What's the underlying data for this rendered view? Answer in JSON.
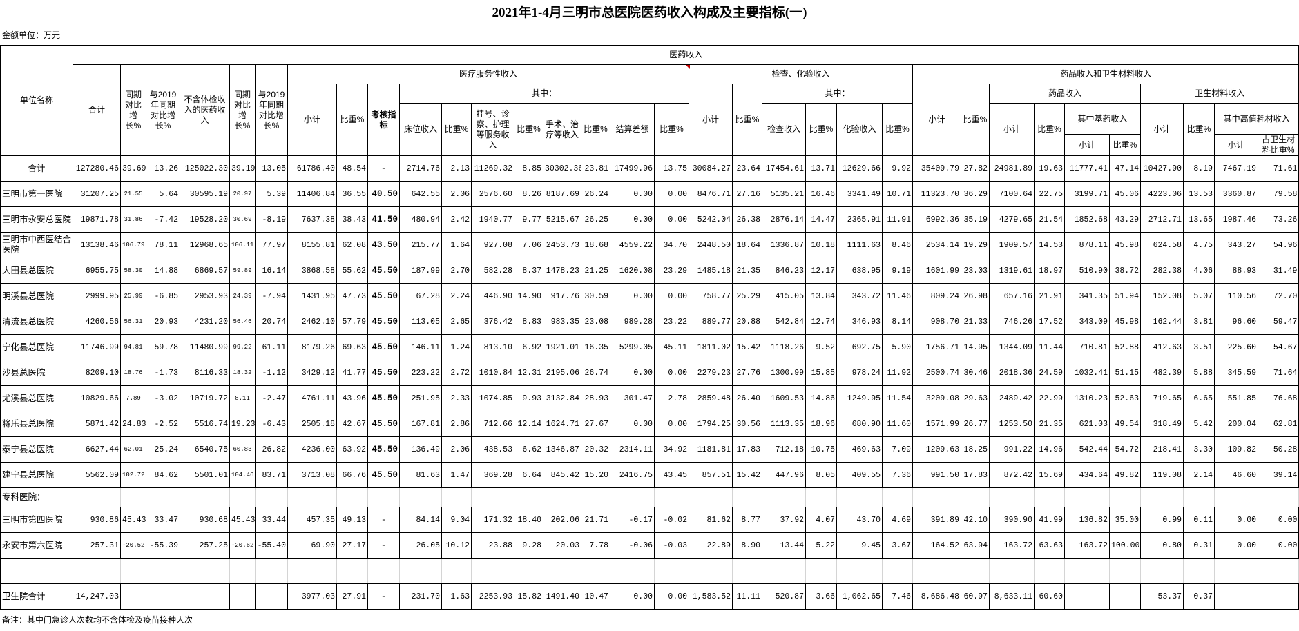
{
  "title": "2021年1-4月三明市总医院医药收入构成及主要指标(一)",
  "unit_label": "金额单位：万元",
  "note": "备注：其中门急诊人次数均不含体检及疫苗接种人次",
  "colors": {
    "border": "#000000",
    "gridline": "#d4d4d4",
    "comment_marker": "#c00000"
  },
  "table": {
    "headers": [
      "单位名称",
      "医药收入",
      "合计",
      "同期对比增长%",
      "与2019年同期对比增长%",
      "不含体检收入的医药收入",
      "同期对比增长%",
      "与2019年同期对比增长%",
      "医疗服务性收入",
      "检查、化验收入",
      "药品收入和卫生材料收入",
      "小计",
      "比重%",
      "考核指标",
      "其中：",
      "小计",
      "比重%",
      "其中：",
      "小计",
      "比重%",
      "药品收入",
      "卫生材料收入",
      "床位收入",
      "比重%",
      "挂号、诊察、护理等服务收入",
      "比重%",
      "手术、治疗等收入",
      "比重%",
      "结算差额",
      "比重%",
      "检查收入",
      "比重%",
      "化验收入",
      "比重%",
      "小计",
      "比重%",
      "其中基药收入",
      "小计",
      "比重%",
      "其中高值耗材收入",
      "小计",
      "比重%",
      "小计",
      "占卫生材料比重%"
    ],
    "rows": [
      {
        "name": "合计",
        "type": "total",
        "values": [
          "127280.46",
          "39.69",
          "13.26",
          "125022.30",
          "39.19",
          "13.05",
          "61786.40",
          "48.54",
          "-",
          "2714.76",
          "2.13",
          "11269.32",
          "8.85",
          "30302.36",
          "23.81",
          "17499.96",
          "13.75",
          "30084.27",
          "23.64",
          "17454.61",
          "13.71",
          "12629.66",
          "9.92",
          "35409.79",
          "27.82",
          "24981.89",
          "19.63",
          "11777.41",
          "47.14",
          "10427.90",
          "8.19",
          "7467.19",
          "71.61"
        ]
      },
      {
        "name": "三明市第一医院",
        "values": [
          "31207.25",
          "21.55",
          "5.64",
          "30595.19",
          "20.97",
          "5.39",
          "11406.84",
          "36.55",
          "40.50",
          "642.55",
          "2.06",
          "2576.60",
          "8.26",
          "8187.69",
          "26.24",
          "0.00",
          "0.00",
          "8476.71",
          "27.16",
          "5135.21",
          "16.46",
          "3341.49",
          "10.71",
          "11323.70",
          "36.29",
          "7100.64",
          "22.75",
          "3199.71",
          "45.06",
          "4223.06",
          "13.53",
          "3360.87",
          "79.58"
        ]
      },
      {
        "name": "三明市永安总医院",
        "values": [
          "19871.78",
          "31.86",
          "-7.42",
          "19528.20",
          "30.69",
          "-8.19",
          "7637.38",
          "38.43",
          "41.50",
          "480.94",
          "2.42",
          "1940.77",
          "9.77",
          "5215.67",
          "26.25",
          "0.00",
          "0.00",
          "5242.04",
          "26.38",
          "2876.14",
          "14.47",
          "2365.91",
          "11.91",
          "6992.36",
          "35.19",
          "4279.65",
          "21.54",
          "1852.68",
          "43.29",
          "2712.71",
          "13.65",
          "1987.46",
          "73.26"
        ]
      },
      {
        "name": "三明市中西医结合医院",
        "values": [
          "13138.46",
          "106.79",
          "78.11",
          "12968.65",
          "106.11",
          "77.97",
          "8155.81",
          "62.08",
          "43.50",
          "215.77",
          "1.64",
          "927.08",
          "7.06",
          "2453.73",
          "18.68",
          "4559.22",
          "34.70",
          "2448.50",
          "18.64",
          "1336.87",
          "10.18",
          "1111.63",
          "8.46",
          "2534.14",
          "19.29",
          "1909.57",
          "14.53",
          "878.11",
          "45.98",
          "624.58",
          "4.75",
          "343.27",
          "54.96"
        ]
      },
      {
        "name": "大田县总医院",
        "values": [
          "6955.75",
          "58.30",
          "14.88",
          "6869.57",
          "59.89",
          "16.14",
          "3868.58",
          "55.62",
          "45.50",
          "187.99",
          "2.70",
          "582.28",
          "8.37",
          "1478.23",
          "21.25",
          "1620.08",
          "23.29",
          "1485.18",
          "21.35",
          "846.23",
          "12.17",
          "638.95",
          "9.19",
          "1601.99",
          "23.03",
          "1319.61",
          "18.97",
          "510.90",
          "38.72",
          "282.38",
          "4.06",
          "88.93",
          "31.49"
        ]
      },
      {
        "name": "明溪县总医院",
        "values": [
          "2999.95",
          "25.99",
          "-6.85",
          "2953.93",
          "24.39",
          "-7.94",
          "1431.95",
          "47.73",
          "45.50",
          "67.28",
          "2.24",
          "446.90",
          "14.90",
          "917.76",
          "30.59",
          "0.00",
          "0.00",
          "758.77",
          "25.29",
          "415.05",
          "13.84",
          "343.72",
          "11.46",
          "809.24",
          "26.98",
          "657.16",
          "21.91",
          "341.35",
          "51.94",
          "152.08",
          "5.07",
          "110.56",
          "72.70"
        ]
      },
      {
        "name": "清流县总医院",
        "values": [
          "4260.56",
          "56.31",
          "20.93",
          "4231.20",
          "56.46",
          "20.74",
          "2462.10",
          "57.79",
          "45.50",
          "113.05",
          "2.65",
          "376.42",
          "8.83",
          "983.35",
          "23.08",
          "989.28",
          "23.22",
          "889.77",
          "20.88",
          "542.84",
          "12.74",
          "346.93",
          "8.14",
          "908.70",
          "21.33",
          "746.26",
          "17.52",
          "343.09",
          "45.98",
          "162.44",
          "3.81",
          "96.60",
          "59.47"
        ]
      },
      {
        "name": "宁化县总医院",
        "values": [
          "11746.99",
          "94.81",
          "59.78",
          "11480.99",
          "99.22",
          "61.11",
          "8179.26",
          "69.63",
          "45.50",
          "146.11",
          "1.24",
          "813.10",
          "6.92",
          "1921.01",
          "16.35",
          "5299.05",
          "45.11",
          "1811.02",
          "15.42",
          "1118.26",
          "9.52",
          "692.75",
          "5.90",
          "1756.71",
          "14.95",
          "1344.09",
          "11.44",
          "710.81",
          "52.88",
          "412.63",
          "3.51",
          "225.60",
          "54.67"
        ]
      },
      {
        "name": "沙县总医院",
        "values": [
          "8209.10",
          "18.76",
          "-1.73",
          "8116.33",
          "18.32",
          "-1.12",
          "3429.12",
          "41.77",
          "45.50",
          "223.22",
          "2.72",
          "1010.84",
          "12.31",
          "2195.06",
          "26.74",
          "0.00",
          "0.00",
          "2279.23",
          "27.76",
          "1300.99",
          "15.85",
          "978.24",
          "11.92",
          "2500.74",
          "30.46",
          "2018.36",
          "24.59",
          "1032.41",
          "51.15",
          "482.39",
          "5.88",
          "345.59",
          "71.64"
        ]
      },
      {
        "name": "尤溪县总医院",
        "values": [
          "10829.66",
          "7.89",
          "-3.02",
          "10719.72",
          "8.11",
          "-2.47",
          "4761.11",
          "43.96",
          "45.50",
          "251.95",
          "2.33",
          "1074.85",
          "9.93",
          "3132.84",
          "28.93",
          "301.47",
          "2.78",
          "2859.48",
          "26.40",
          "1609.53",
          "14.86",
          "1249.95",
          "11.54",
          "3209.08",
          "29.63",
          "2489.42",
          "22.99",
          "1310.23",
          "52.63",
          "719.65",
          "6.65",
          "551.85",
          "76.68"
        ]
      },
      {
        "name": "将乐县总医院",
        "values": [
          "5871.42",
          "24.83",
          "-2.52",
          "5516.74",
          "19.23",
          "-6.43",
          "2505.18",
          "42.67",
          "45.50",
          "167.81",
          "2.86",
          "712.66",
          "12.14",
          "1624.71",
          "27.67",
          "0.00",
          "0.00",
          "1794.25",
          "30.56",
          "1113.35",
          "18.96",
          "680.90",
          "11.60",
          "1571.99",
          "26.77",
          "1253.50",
          "21.35",
          "621.03",
          "49.54",
          "318.49",
          "5.42",
          "200.04",
          "62.81"
        ]
      },
      {
        "name": "泰宁县总医院",
        "values": [
          "6627.44",
          "62.01",
          "25.24",
          "6540.75",
          "60.83",
          "26.82",
          "4236.00",
          "63.92",
          "45.50",
          "136.49",
          "2.06",
          "438.53",
          "6.62",
          "1346.87",
          "20.32",
          "2314.11",
          "34.92",
          "1181.81",
          "17.83",
          "712.18",
          "10.75",
          "469.63",
          "7.09",
          "1209.63",
          "18.25",
          "991.22",
          "14.96",
          "542.44",
          "54.72",
          "218.41",
          "3.30",
          "109.82",
          "50.28"
        ]
      },
      {
        "name": "建宁县总医院",
        "values": [
          "5562.09",
          "102.72",
          "84.62",
          "5501.01",
          "104.46",
          "83.71",
          "3713.08",
          "66.76",
          "45.50",
          "81.63",
          "1.47",
          "369.28",
          "6.64",
          "845.42",
          "15.20",
          "2416.75",
          "43.45",
          "857.51",
          "15.42",
          "447.96",
          "8.05",
          "409.55",
          "7.36",
          "991.50",
          "17.83",
          "872.42",
          "15.69",
          "434.64",
          "49.82",
          "119.08",
          "2.14",
          "46.60",
          "39.14"
        ]
      },
      {
        "name": "专科医院：",
        "type": "section",
        "values": []
      },
      {
        "name": "三明市第四医院",
        "values": [
          "930.86",
          "45.43",
          "33.47",
          "930.68",
          "45.43",
          "33.44",
          "457.35",
          "49.13",
          "-",
          "84.14",
          "9.04",
          "171.32",
          "18.40",
          "202.06",
          "21.71",
          "-0.17",
          "-0.02",
          "81.62",
          "8.77",
          "37.92",
          "4.07",
          "43.70",
          "4.69",
          "391.89",
          "42.10",
          "390.90",
          "41.99",
          "136.82",
          "35.00",
          "0.99",
          "0.11",
          "0.00",
          "0.00"
        ]
      },
      {
        "name": "永安市第六医院",
        "values": [
          "257.31",
          "-20.52",
          "-55.39",
          "257.25",
          "-20.62",
          "-55.40",
          "69.90",
          "27.17",
          "-",
          "26.05",
          "10.12",
          "23.88",
          "9.28",
          "20.03",
          "7.78",
          "-0.06",
          "-0.03",
          "22.89",
          "8.90",
          "13.44",
          "5.22",
          "9.45",
          "3.67",
          "164.52",
          "63.94",
          "163.72",
          "63.63",
          "163.72",
          "100.00",
          "0.80",
          "0.31",
          "0.00",
          "0.00"
        ]
      },
      {
        "name": "",
        "type": "blank",
        "values": []
      },
      {
        "name": "卫生院合计",
        "values": [
          "14,247.03",
          "",
          "",
          "",
          "",
          "",
          "3977.03",
          "27.91",
          "-",
          "231.70",
          "1.63",
          "2253.93",
          "15.82",
          "1491.40",
          "10.47",
          "0.00",
          "0.00",
          "1,583.52",
          "11.11",
          "520.87",
          "3.66",
          "1,062.65",
          "7.46",
          "8,686.48",
          "60.97",
          "8,633.11",
          "60.60",
          "",
          "",
          "53.37",
          "0.37",
          "",
          ""
        ]
      }
    ]
  }
}
